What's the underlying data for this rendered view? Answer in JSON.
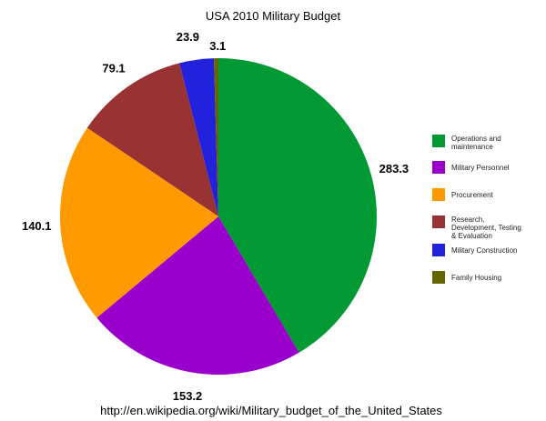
{
  "chart_data": {
    "type": "pie",
    "title": "USA 2010 Military Budget",
    "start": "top-clockwise",
    "legend_position": "right",
    "slices": [
      {
        "label": "Operations and maintenance",
        "value": 283.3,
        "value_label": "283.3",
        "color": "#009933"
      },
      {
        "label": "Military Personnel",
        "value": 153.2,
        "value_label": "153.2",
        "color": "#9900CC"
      },
      {
        "label": "Procurement",
        "value": 140.1,
        "value_label": "140.1",
        "color": "#FF9900"
      },
      {
        "label": "Research, Development, Testing & Evaluation",
        "value": 79.1,
        "value_label": "79.1",
        "color": "#993333"
      },
      {
        "label": "Military Construction",
        "value": 23.9,
        "value_label": "23.9",
        "color": "#2222DD"
      },
      {
        "label": "Family Housing",
        "value": 3.1,
        "value_label": "3.1",
        "color": "#666600"
      }
    ],
    "legend_lines": [
      [
        "Operations and",
        "maintenance"
      ],
      [
        "Military Personnel"
      ],
      [
        "Procurement"
      ],
      [
        "Research,",
        "Development, Testing",
        "& Evaluation"
      ],
      [
        "Military Construction"
      ],
      [
        "Family Housing"
      ]
    ]
  },
  "source": "http://en.wikipedia.org/wiki/Military_budget_of_the_United_States"
}
